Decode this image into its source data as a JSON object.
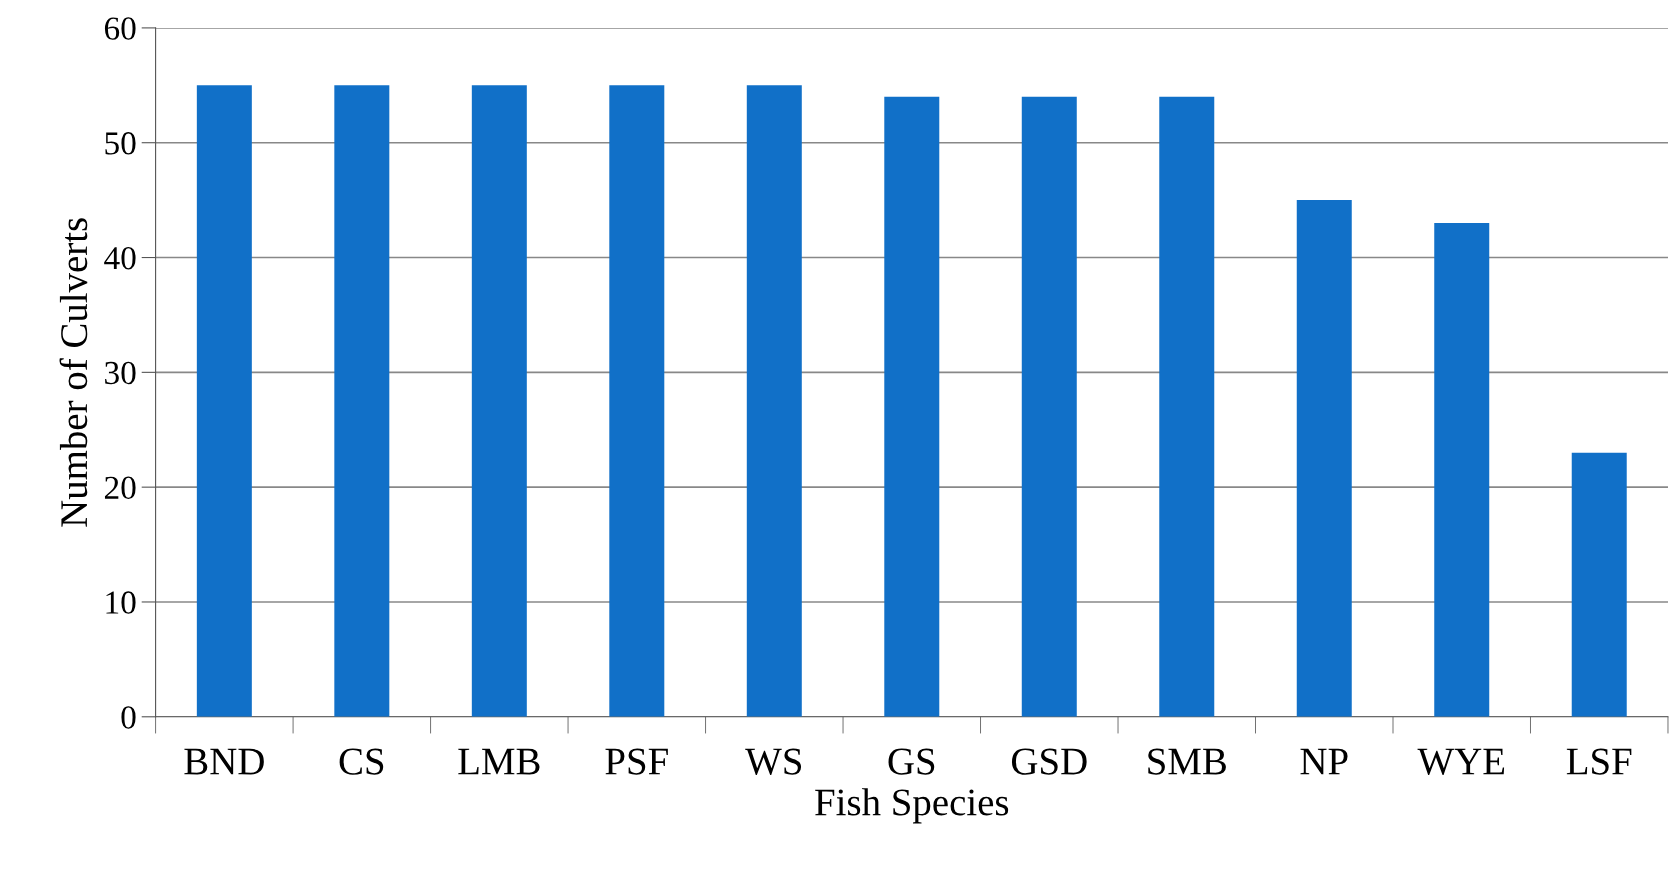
{
  "chart_data": {
    "type": "bar",
    "xlabel": "Fish Species",
    "ylabel": "Number of Culverts",
    "categories": [
      "BND",
      "CS",
      "LMB",
      "PSF",
      "WS",
      "GS",
      "GSD",
      "SMB",
      "NP",
      "WYE",
      "LSF"
    ],
    "values": [
      55,
      55,
      55,
      55,
      55,
      54,
      54,
      54,
      45,
      43,
      23
    ],
    "color": "#1170c8",
    "ylim": [
      0,
      60
    ],
    "yticks": [
      0,
      10,
      20,
      30,
      40,
      50,
      60
    ],
    "grid": "y",
    "legend": false
  }
}
